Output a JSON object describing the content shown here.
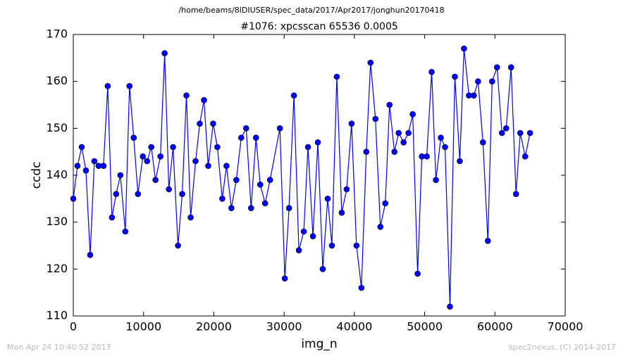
{
  "chart_data": {
    "type": "line",
    "title": "/home/beams/8IDIUSER/spec_data/2017/Apr2017/jonghun20170418",
    "subtitle": "#1076: xpcsscan 65536 0.0005",
    "xlabel": "img_n",
    "ylabel": "ccdc",
    "timestamp": "Mon Apr 24 10:40:52 2017",
    "credit": "spec2nexus, (C) 2014-2017",
    "color": "#0000ff",
    "marker": "circle",
    "grid": false,
    "xlim": [
      0,
      70000
    ],
    "xticks": [
      0,
      10000,
      20000,
      30000,
      40000,
      50000,
      60000,
      70000
    ],
    "ylim": [
      110,
      170
    ],
    "yticks": [
      110,
      120,
      130,
      140,
      150,
      160,
      170
    ],
    "x": [
      0,
      600,
      1200,
      1800,
      2400,
      3000,
      3600,
      4300,
      4900,
      5500,
      6100,
      6700,
      7400,
      8000,
      8600,
      9200,
      9900,
      10500,
      11100,
      11700,
      12400,
      13000,
      13600,
      14200,
      14900,
      15500,
      16100,
      16700,
      17400,
      18000,
      18600,
      19200,
      19900,
      20500,
      21200,
      21800,
      22500,
      23200,
      23900,
      24600,
      25300,
      26000,
      26600,
      27300,
      28000,
      29400,
      30100,
      30700,
      31400,
      32100,
      32800,
      33400,
      34100,
      34800,
      35500,
      36200,
      36800,
      37500,
      38200,
      38900,
      39600,
      40300,
      41000,
      41700,
      42300,
      43000,
      43700,
      44400,
      45000,
      45700,
      46300,
      47000,
      47700,
      48300,
      49000,
      49600,
      50300,
      51000,
      51600,
      52300,
      52900,
      53600,
      54300,
      55000,
      55600,
      56300,
      57000,
      57600,
      58300,
      59000,
      59600,
      60300,
      61000,
      61600,
      62300,
      63000,
      63600,
      64300,
      65000
    ],
    "values": [
      135,
      142,
      146,
      141,
      123,
      143,
      142,
      142,
      159,
      131,
      136,
      140,
      128,
      159,
      148,
      136,
      144,
      143,
      146,
      139,
      144,
      166,
      137,
      146,
      125,
      136,
      157,
      131,
      143,
      151,
      156,
      142,
      151,
      146,
      135,
      142,
      133,
      139,
      148,
      150,
      133,
      148,
      138,
      134,
      139,
      150,
      118,
      133,
      157,
      124,
      128,
      146,
      127,
      147,
      120,
      135,
      125,
      161,
      132,
      137,
      151,
      125,
      116,
      145,
      164,
      152,
      129,
      134,
      155,
      145,
      149,
      147,
      149,
      153,
      119,
      144,
      144,
      162,
      139,
      148,
      146,
      112,
      161,
      143,
      167,
      157,
      157,
      160,
      147,
      126,
      160,
      163,
      149,
      150,
      163,
      136,
      149,
      144,
      149
    ]
  }
}
